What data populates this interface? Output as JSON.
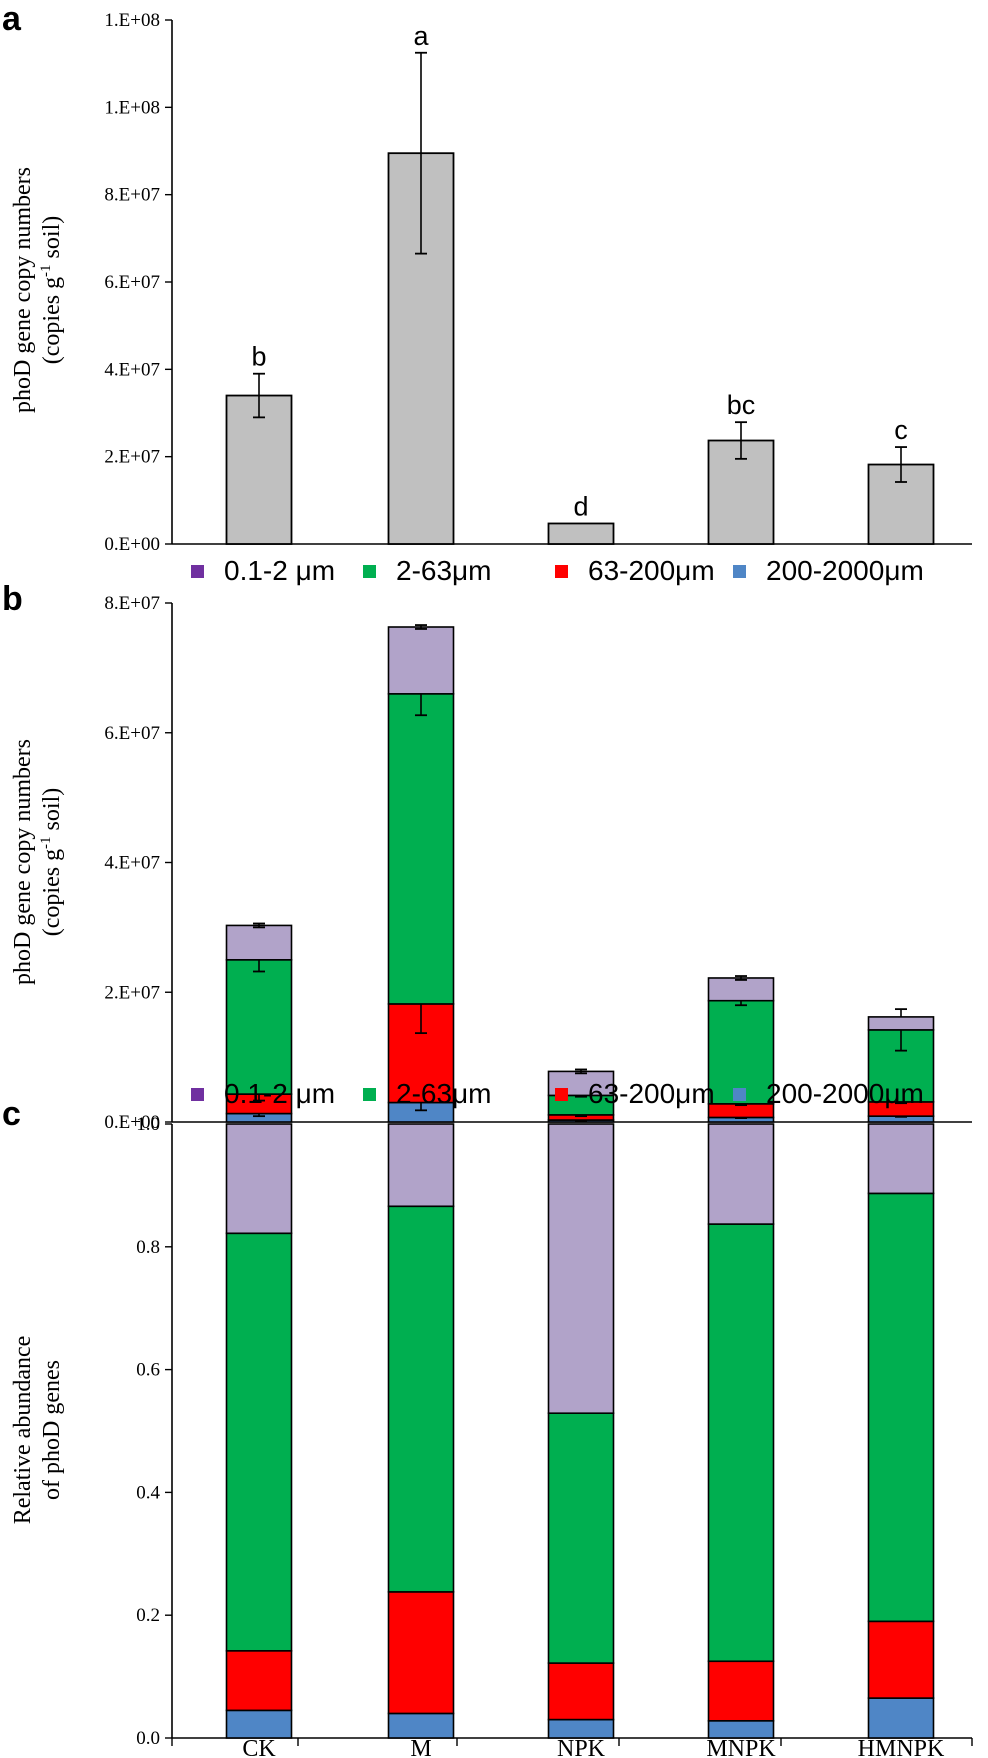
{
  "panels": [
    {
      "letter": "a",
      "ylabel_line1": "phoD gene copy numbers",
      "ylabel_line2": "(copies g",
      "ylabel_sup": "-1",
      "ylabel_tail": " soil)",
      "ticks": [
        "0.E+00",
        "2.E+07",
        "4.E+07",
        "6.E+07",
        "8.E+07",
        "1.E+08",
        "1.E+08"
      ]
    },
    {
      "letter": "b",
      "ylabel_line1": "phoD gene copy numbers",
      "ylabel_line2": "(copies g",
      "ylabel_sup": "-1",
      "ylabel_tail": " soil)",
      "ticks": [
        "0.E+00",
        "2.E+07",
        "4.E+07",
        "6.E+07",
        "8.E+07"
      ],
      "legend": [
        "0.1-2 μm",
        "2-63μm",
        "63-200μm",
        "200-2000μm"
      ]
    },
    {
      "letter": "c",
      "ylabel_line1": "Relative abundance",
      "ylabel_line2": "of phoD genes",
      "ticks": [
        "0.0",
        "0.2",
        "0.4",
        "0.6",
        "0.8",
        "1.0"
      ],
      "legend": [
        "0.1-2 μm",
        "2-63μm",
        "63-200μm",
        "200-2000μm"
      ]
    }
  ],
  "colors": {
    "bar_total": "#c0c0c0",
    "frac_0_1_2": "#b1a3c9",
    "frac_2_63": "#00af50",
    "frac_63_200": "#ff0000",
    "frac_200_2000": "#4f86c6",
    "legend_0_1_2": "#7030a0"
  },
  "chart_data": [
    {
      "type": "bar",
      "categories": [
        "CK",
        "M",
        "NPK",
        "MNPK",
        "HMNPK"
      ],
      "values": [
        34000000,
        89500000,
        4700000,
        23700000,
        18200000
      ],
      "errors": [
        5000000,
        23000000,
        0,
        4200000,
        4000000
      ],
      "significance_letters": [
        "b",
        "a",
        "d",
        "bc",
        "c"
      ],
      "ylabel": "phoD gene copy numbers (copies g-1 soil)",
      "ylim": [
        0,
        120000000
      ]
    },
    {
      "type": "bar",
      "stacked": true,
      "categories": [
        "CK",
        "M",
        "NPK",
        "MNPK",
        "HMNPK"
      ],
      "series": [
        {
          "name": "200-2000μm",
          "values": [
            1300000,
            3000000,
            300000,
            700000,
            900000
          ],
          "errors": [
            400000,
            1200000,
            100000,
            100000,
            100000
          ]
        },
        {
          "name": "63-200μm",
          "values": [
            3000000,
            15200000,
            800000,
            2100000,
            2200000
          ],
          "errors": [
            1000000,
            4500000,
            200000,
            200000,
            200000
          ]
        },
        {
          "name": "2-63μm",
          "values": [
            20700000,
            47800000,
            3000000,
            15900000,
            11100000
          ],
          "errors": [
            1800000,
            3300000,
            200000,
            700000,
            3200000
          ]
        },
        {
          "name": "0.1-2 μm",
          "values": [
            5300000,
            10300000,
            3700000,
            3500000,
            2000000
          ],
          "errors": [
            300000,
            300000,
            300000,
            300000,
            0
          ]
        }
      ],
      "ylabel": "phoD gene copy numbers (copies g-1 soil)",
      "ylim": [
        0,
        80000000
      ],
      "legend_position": "top"
    },
    {
      "type": "bar",
      "stacked": true,
      "categories": [
        "CK",
        "M",
        "NPK",
        "MNPK",
        "HMNPK"
      ],
      "series": [
        {
          "name": "200-2000μm",
          "values": [
            0.045,
            0.04,
            0.03,
            0.028,
            0.065
          ]
        },
        {
          "name": "63-200μm",
          "values": [
            0.097,
            0.198,
            0.092,
            0.097,
            0.125
          ]
        },
        {
          "name": "2-63μm",
          "values": [
            0.68,
            0.628,
            0.407,
            0.712,
            0.697
          ]
        },
        {
          "name": "0.1-2 μm",
          "values": [
            0.178,
            0.134,
            0.471,
            0.163,
            0.113
          ]
        }
      ],
      "ylabel": "Relative abundance of phoD genes",
      "ylim": [
        0,
        1.0
      ],
      "legend_position": "top"
    }
  ]
}
